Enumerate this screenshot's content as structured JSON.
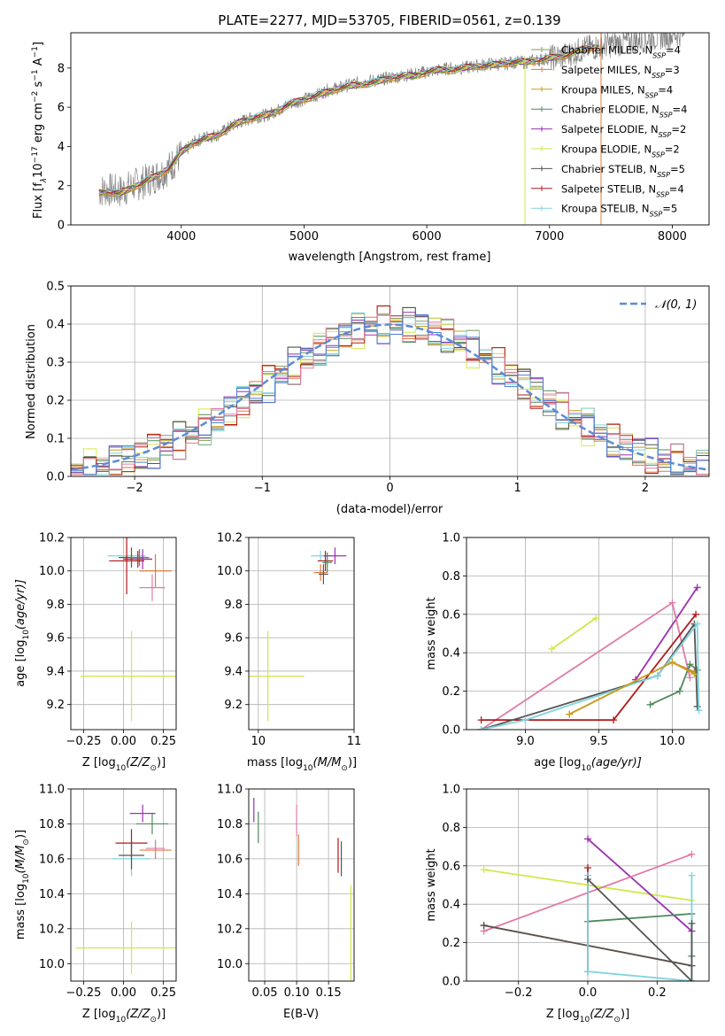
{
  "figure": {
    "title": "PLATE=2277, MJD=53705, FIBERID=0561, z=0.139"
  },
  "colors": {
    "Chabrier MILES": "#8a9a5b",
    "Salpeter MILES": "#e07b39",
    "Kroupa MILES": "#c8a020",
    "Chabrier ELODIE": "#4f8a5b",
    "Salpeter ELODIE": "#9b30b0",
    "Kroupa ELODIE": "#d4e64a",
    "Chabrier STELIB": "#555555",
    "Salpeter STELIB": "#b01a1a",
    "Kroupa STELIB": "#7fd4e0",
    "pink": "#e07aa8",
    "blue": "#4a7fd0",
    "gauss": "#5b8cd6"
  },
  "legend_spectrum": [
    {
      "name": "Chabrier MILES",
      "label": "Chabrier MILES, N",
      "sub": "SSP",
      "n": "=4",
      "color": "#8a9a5b"
    },
    {
      "name": "Salpeter MILES",
      "label": "Salpeter MILES, N",
      "sub": "SSP",
      "n": "=3",
      "color": "#e07b39"
    },
    {
      "name": "Kroupa MILES",
      "label": "Kroupa MILES, N",
      "sub": "SSP",
      "n": "=4",
      "color": "#c8a020"
    },
    {
      "name": "Chabrier ELODIE",
      "label": "Chabrier ELODIE, N",
      "sub": "SSP",
      "n": "=4",
      "color": "#4f8a5b"
    },
    {
      "name": "Salpeter ELODIE",
      "label": "Salpeter ELODIE, N",
      "sub": "SSP",
      "n": "=2",
      "color": "#9b30b0"
    },
    {
      "name": "Kroupa ELODIE",
      "label": "Kroupa ELODIE, N",
      "sub": "SSP",
      "n": "=2",
      "color": "#d4e64a"
    },
    {
      "name": "Chabrier STELIB",
      "label": "Chabrier STELIB, N",
      "sub": "SSP",
      "n": "=5",
      "color": "#555555"
    },
    {
      "name": "Salpeter STELIB",
      "label": "Salpeter STELIB, N",
      "sub": "SSP",
      "n": "=4",
      "color": "#b01a1a"
    },
    {
      "name": "Kroupa STELIB",
      "label": "Kroupa STELIB, N",
      "sub": "SSP",
      "n": "=5",
      "color": "#7fd4e0"
    }
  ],
  "chart_data": [
    {
      "id": "spectrum",
      "type": "line",
      "title": "PLATE=2277, MJD=53705, FIBERID=0561, z=0.139",
      "xlabel": "wavelength [Angstrom, rest frame]",
      "ylabel_main": "Flux [f",
      "ylabel_unit": "10",
      "xlim": [
        3100,
        8300
      ],
      "ylim": [
        0,
        9.8
      ],
      "xticks": [
        "4000",
        "5000",
        "6000",
        "7000",
        "8000"
      ],
      "yticks": [
        "0",
        "2",
        "4",
        "6",
        "8"
      ],
      "data_series": {
        "name": "data",
        "x": [
          3300,
          3400,
          3500,
          3600,
          3700,
          3800,
          3900,
          4000,
          4100,
          4200,
          4300,
          4400,
          4500,
          4600,
          4700,
          4800,
          4900,
          5000,
          5100,
          5200,
          5300,
          5400,
          5500,
          5600,
          5700,
          5800,
          5900,
          6000,
          6100,
          6200,
          6300,
          6400,
          6500,
          6600,
          6700,
          6800,
          6900,
          7000,
          7100,
          7200,
          7300,
          7400,
          7500,
          7600,
          7700,
          7800,
          7900,
          8000,
          8100
        ],
        "y": [
          1.7,
          1.8,
          1.7,
          2.0,
          2.2,
          2.5,
          2.9,
          3.6,
          4.2,
          4.5,
          4.6,
          5.0,
          5.3,
          5.5,
          5.6,
          5.9,
          6.2,
          6.4,
          6.6,
          6.9,
          7.0,
          7.2,
          7.3,
          7.4,
          7.5,
          7.6,
          7.7,
          7.8,
          7.9,
          8.0,
          8.0,
          8.1,
          8.2,
          8.2,
          8.3,
          8.3,
          8.4,
          8.5,
          8.6,
          8.8,
          9.0,
          9.1,
          9.2,
          9.3,
          9.4,
          9.5,
          9.6,
          9.7,
          9.8
        ]
      },
      "model_series": {
        "x": [
          3300,
          3400,
          3500,
          3600,
          3700,
          3800,
          3900,
          4000,
          4100,
          4200,
          4300,
          4400,
          4500,
          4600,
          4700,
          4800,
          4900,
          5000,
          5100,
          5200,
          5300,
          5400,
          5500,
          5600,
          5700,
          5800,
          5900,
          6000,
          6100,
          6200,
          6300,
          6400,
          6500,
          6600,
          6700,
          6800,
          6900,
          7000,
          7100,
          7200,
          7300,
          7400
        ],
        "y": [
          1.6,
          1.7,
          1.6,
          1.9,
          2.2,
          2.5,
          2.9,
          3.7,
          4.2,
          4.4,
          4.6,
          5.0,
          5.3,
          5.5,
          5.6,
          5.9,
          6.2,
          6.4,
          6.6,
          6.8,
          7.0,
          7.1,
          7.2,
          7.3,
          7.5,
          7.6,
          7.6,
          7.8,
          7.9,
          7.9,
          8.0,
          8.1,
          8.1,
          8.2,
          8.3,
          8.3,
          8.4,
          8.5,
          8.6,
          8.8,
          9.0,
          9.1
        ]
      }
    },
    {
      "id": "residuals",
      "type": "line",
      "xlabel": "(data-model)/error",
      "ylabel": "Normed distribution",
      "xlim": [
        -2.5,
        2.5
      ],
      "ylim": [
        0,
        0.5
      ],
      "xticks": [
        "−2",
        "−1",
        "0",
        "1",
        "2"
      ],
      "yticks": [
        "0.0",
        "0.1",
        "0.2",
        "0.3",
        "0.4",
        "0.5"
      ],
      "legend": "𝒩(0, 1)",
      "x": [
        -2.4,
        -2.2,
        -2.0,
        -1.8,
        -1.6,
        -1.4,
        -1.2,
        -1.0,
        -0.8,
        -0.6,
        -0.4,
        -0.2,
        0.0,
        0.2,
        0.4,
        0.6,
        0.8,
        1.0,
        1.2,
        1.4,
        1.6,
        1.8,
        2.0,
        2.2,
        2.4
      ],
      "hist_mean": [
        0.03,
        0.04,
        0.05,
        0.08,
        0.13,
        0.19,
        0.24,
        0.29,
        0.33,
        0.38,
        0.41,
        0.43,
        0.44,
        0.4,
        0.36,
        0.32,
        0.28,
        0.23,
        0.18,
        0.13,
        0.09,
        0.06,
        0.05,
        0.04,
        0.03
      ]
    },
    {
      "id": "age-vs-Z",
      "type": "scatter",
      "xlabel_pre": "Z [log",
      "xlabel_post": "(Z/Z",
      "ylabel_pre": "age  [log",
      "ylabel_post": "(age/yr)]",
      "xlim": [
        -0.33,
        0.33
      ],
      "ylim": [
        9.05,
        10.2
      ],
      "xticks": [
        "−0.25",
        "0.00",
        "0.25"
      ],
      "yticks": [
        "9.2",
        "9.4",
        "9.6",
        "9.8",
        "10.0",
        "10.2"
      ],
      "points": [
        {
          "x": 0.05,
          "y": 9.37,
          "xe": 0.32,
          "ye": 0.27,
          "color": "#d4e64a"
        },
        {
          "x": 0.02,
          "y": 10.09,
          "xe": 0.12,
          "ye": 0.03,
          "color": "#7fd4e0"
        },
        {
          "x": 0.05,
          "y": 10.08,
          "xe": 0.08,
          "ye": 0.06,
          "color": "#555555"
        },
        {
          "x": 0.09,
          "y": 10.07,
          "xe": 0.09,
          "ye": 0.05,
          "color": "#b01a1a"
        },
        {
          "x": 0.1,
          "y": 10.08,
          "xe": 0.06,
          "ye": 0.05,
          "color": "#4f8a5b"
        },
        {
          "x": 0.12,
          "y": 10.07,
          "xe": 0.06,
          "ye": 0.06,
          "color": "#9b30b0"
        },
        {
          "x": 0.2,
          "y": 10.0,
          "xe": 0.1,
          "ye": 0.1,
          "color": "#e07b39"
        },
        {
          "x": 0.18,
          "y": 9.9,
          "xe": 0.08,
          "ye": 0.08,
          "color": "#e07aa8"
        },
        {
          "x": 0.02,
          "y": 10.06,
          "xe": 0.11,
          "ye": 0.2,
          "color": "#b01a1a"
        }
      ]
    },
    {
      "id": "age-vs-mass",
      "type": "scatter",
      "xlabel_pre": "mass [log",
      "xlabel_post": "(M/M",
      "xlim": [
        9.9,
        11.0
      ],
      "ylim": [
        9.05,
        10.2
      ],
      "xticks": [
        "10",
        "11"
      ],
      "yticks": [
        "9.2",
        "9.4",
        "9.6",
        "9.8",
        "10.0",
        "10.2"
      ],
      "points": [
        {
          "x": 10.1,
          "y": 9.37,
          "xe": 0.38,
          "ye": 0.27,
          "color": "#d4e64a"
        },
        {
          "x": 10.65,
          "y": 10.09,
          "xe": 0.1,
          "ye": 0.03,
          "color": "#7fd4e0"
        },
        {
          "x": 10.7,
          "y": 10.06,
          "xe": 0.08,
          "ye": 0.06,
          "color": "#b01a1a"
        },
        {
          "x": 10.8,
          "y": 10.09,
          "xe": 0.12,
          "ye": 0.05,
          "color": "#9b30b0"
        },
        {
          "x": 10.65,
          "y": 9.99,
          "xe": 0.07,
          "ye": 0.05,
          "color": "#e07b39"
        },
        {
          "x": 10.68,
          "y": 9.98,
          "xe": 0.05,
          "ye": 0.06,
          "color": "#555555"
        },
        {
          "x": 10.72,
          "y": 10.05,
          "xe": 0.05,
          "ye": 0.06,
          "color": "#4f8a5b"
        }
      ]
    },
    {
      "id": "weight-vs-age",
      "type": "line",
      "xlabel_pre": "age  [log",
      "xlabel_post": "(age/yr)]",
      "ylabel": "mass weight",
      "xlim": [
        8.6,
        10.25
      ],
      "ylim": [
        0,
        1.0
      ],
      "xticks": [
        "9.0",
        "9.5",
        "10.0"
      ],
      "yticks": [
        "0.0",
        "0.2",
        "0.4",
        "0.6",
        "0.8",
        "1.0"
      ],
      "series": [
        {
          "color": "#d4e64a",
          "x": [
            9.18,
            9.48
          ],
          "y": [
            0.42,
            0.58
          ]
        },
        {
          "color": "#9b30b0",
          "x": [
            9.75,
            10.17
          ],
          "y": [
            0.26,
            0.74
          ]
        },
        {
          "color": "#e07aa8",
          "x": [
            8.7,
            10.0,
            10.12
          ],
          "y": [
            0.0,
            0.66,
            0.27
          ]
        },
        {
          "color": "#e07b39",
          "x": [
            9.3,
            10.0,
            10.15
          ],
          "y": [
            0.08,
            0.35,
            0.3
          ]
        },
        {
          "color": "#b01a1a",
          "x": [
            8.7,
            9.6,
            10.16
          ],
          "y": [
            0.05,
            0.05,
            0.6
          ]
        },
        {
          "color": "#4f8a5b",
          "x": [
            9.85,
            10.05,
            10.12,
            10.17
          ],
          "y": [
            0.13,
            0.2,
            0.34,
            0.31
          ]
        },
        {
          "color": "#555555",
          "x": [
            8.7,
            9.9,
            10.15,
            10.17
          ],
          "y": [
            0.0,
            0.28,
            0.55,
            0.12
          ]
        },
        {
          "color": "#7fd4e0",
          "x": [
            8.7,
            9.0,
            9.9,
            10.17,
            10.18
          ],
          "y": [
            0.0,
            0.05,
            0.28,
            0.55,
            0.1
          ]
        },
        {
          "color": "#c8a020",
          "x": [
            9.3,
            10.0,
            10.15
          ],
          "y": [
            0.08,
            0.35,
            0.29
          ]
        }
      ]
    },
    {
      "id": "mass-vs-Z",
      "type": "scatter",
      "xlabel_pre": "Z [log",
      "xlabel_post": "(Z/Z",
      "ylabel_pre": "mass [log",
      "ylabel_post": "(M/M",
      "xlim": [
        -0.33,
        0.33
      ],
      "ylim": [
        9.9,
        11.0
      ],
      "xticks": [
        "−0.25",
        "0.00",
        "0.25"
      ],
      "yticks": [
        "10.0",
        "10.2",
        "10.4",
        "10.6",
        "10.8",
        "11.0"
      ],
      "points": [
        {
          "x": 0.05,
          "y": 10.09,
          "xe": 0.35,
          "ye": 0.15,
          "color": "#d4e64a"
        },
        {
          "x": 0.05,
          "y": 10.6,
          "xe": 0.12,
          "ye": 0.1,
          "color": "#7fd4e0"
        },
        {
          "x": 0.05,
          "y": 10.69,
          "xe": 0.1,
          "ye": 0.08,
          "color": "#b01a1a"
        },
        {
          "x": 0.12,
          "y": 10.86,
          "xe": 0.08,
          "ye": 0.05,
          "color": "#9b30b0"
        },
        {
          "x": 0.18,
          "y": 10.8,
          "xe": 0.1,
          "ye": 0.06,
          "color": "#4f8a5b"
        },
        {
          "x": 0.2,
          "y": 10.65,
          "xe": 0.1,
          "ye": 0.05,
          "color": "#e07b39"
        },
        {
          "x": 0.2,
          "y": 10.66,
          "xe": 0.06,
          "ye": 0.05,
          "color": "#e07aa8"
        },
        {
          "x": 0.05,
          "y": 10.62,
          "xe": 0.08,
          "ye": 0.08,
          "color": "#555555"
        }
      ]
    },
    {
      "id": "mass-vs-EBV",
      "type": "scatter",
      "xlabel": "E(B-V)",
      "xlim": [
        0.025,
        0.19
      ],
      "ylim": [
        9.9,
        11.0
      ],
      "xticks": [
        "0.05",
        "0.10",
        "0.15"
      ],
      "yticks": [
        "10.0",
        "10.2",
        "10.4",
        "10.6",
        "10.8",
        "11.0"
      ],
      "points": [
        {
          "x": 0.033,
          "y": 10.88,
          "xe": 0.0,
          "ye": 0.07,
          "color": "#9b30b0"
        },
        {
          "x": 0.04,
          "y": 10.78,
          "xe": 0.0,
          "ye": 0.09,
          "color": "#4f8a5b"
        },
        {
          "x": 0.1,
          "y": 10.82,
          "xe": 0.0,
          "ye": 0.09,
          "color": "#e07aa8"
        },
        {
          "x": 0.103,
          "y": 10.65,
          "xe": 0.0,
          "ye": 0.09,
          "color": "#e07b39"
        },
        {
          "x": 0.165,
          "y": 10.62,
          "xe": 0.0,
          "ye": 0.1,
          "color": "#b01a1a"
        },
        {
          "x": 0.17,
          "y": 10.6,
          "xe": 0.0,
          "ye": 0.1,
          "color": "#555555"
        },
        {
          "x": 0.185,
          "y": 10.1,
          "xe": 0.0,
          "ye": 0.35,
          "color": "#d4e64a"
        }
      ]
    },
    {
      "id": "weight-vs-Z",
      "type": "line",
      "xlabel_pre": "Z [log",
      "xlabel_post": "(Z/Z",
      "ylabel": "mass weight",
      "xlim": [
        -0.35,
        0.35
      ],
      "ylim": [
        0,
        1.0
      ],
      "xticks": [
        "−0.2",
        "0.0",
        "0.2"
      ],
      "yticks": [
        "0.0",
        "0.2",
        "0.4",
        "0.6",
        "0.8",
        "1.0"
      ],
      "series": [
        {
          "color": "#d4e64a",
          "x": [
            -0.3,
            0.3
          ],
          "y": [
            0.58,
            0.42
          ]
        },
        {
          "color": "#9b30b0",
          "x": [
            0.0,
            0.3
          ],
          "y": [
            0.74,
            0.26
          ]
        },
        {
          "color": "#e07aa8",
          "x": [
            -0.3,
            0.3
          ],
          "y": [
            0.26,
            0.66
          ]
        },
        {
          "color": "#4f8a5b",
          "x": [
            0.0,
            0.3,
            0.3
          ],
          "y": [
            0.31,
            0.35,
            0.13
          ]
        },
        {
          "color": "#e07b39",
          "x": [
            -0.3,
            0.3
          ],
          "y": [
            0.29,
            0.08
          ]
        },
        {
          "color": "#555555",
          "x": [
            -0.3,
            0.3
          ],
          "y": [
            0.29,
            0.08
          ]
        },
        {
          "color": "#b01a1a",
          "x": [
            0.0,
            0.0
          ],
          "y": [
            0.59,
            0.05
          ]
        },
        {
          "color": "#7fd4e0",
          "x": [
            0.0,
            0.0,
            0.3,
            0.3
          ],
          "y": [
            0.55,
            0.05,
            0.0,
            0.55
          ]
        },
        {
          "color": "#555555",
          "x": [
            0.0,
            0.3,
            0.3
          ],
          "y": [
            0.53,
            0.0,
            0.3
          ]
        }
      ]
    }
  ]
}
